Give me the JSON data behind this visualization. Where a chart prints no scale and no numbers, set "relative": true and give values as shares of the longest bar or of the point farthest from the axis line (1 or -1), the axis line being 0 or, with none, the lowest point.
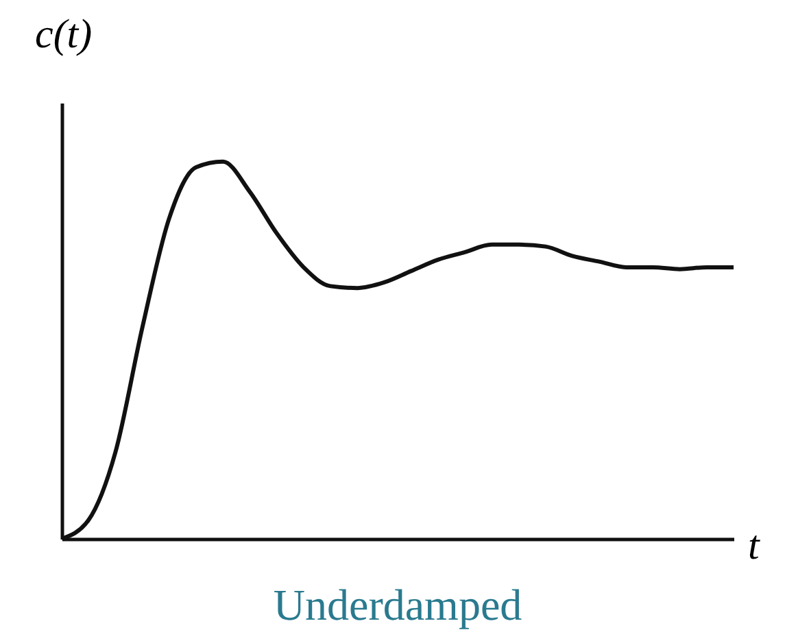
{
  "chart_data": {
    "type": "line",
    "title": "Underdamped",
    "xlabel": "t",
    "ylabel": "c(t)",
    "relative": true,
    "categories": [
      null,
      null,
      null,
      null,
      null,
      null,
      null,
      null,
      null,
      null,
      null,
      null,
      null,
      null,
      null,
      null,
      null,
      null,
      null,
      null,
      null,
      null,
      null,
      null,
      null,
      null
    ],
    "series": [
      {
        "color": "#111111",
        "values": [
          0,
          0.05,
          0.23,
          0.56,
          0.85,
          0.985,
          1,
          0.92,
          0.81,
          0.72,
          0.67,
          0.665,
          0.68,
          0.71,
          0.74,
          0.76,
          0.78,
          0.78,
          0.775,
          0.75,
          0.735,
          0.72,
          0.72,
          0.715,
          0.72,
          0.72
        ]
      }
    ],
    "grid": false,
    "marker": "none",
    "line_style": "solid"
  }
}
